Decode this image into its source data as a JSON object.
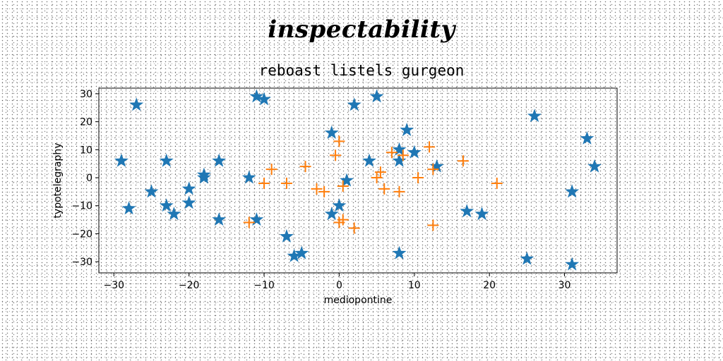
{
  "chart_data": {
    "type": "scatter",
    "suptitle": "inspectability",
    "title": "reboast listels gurgeon",
    "xlabel": "mediopontine",
    "ylabel": "typotelegraphy",
    "xlim": [
      -32,
      37
    ],
    "ylim": [
      -34,
      32
    ],
    "xticks": [
      -30,
      -20,
      -10,
      0,
      10,
      20,
      30
    ],
    "yticks": [
      -30,
      -20,
      -10,
      0,
      10,
      20,
      30
    ],
    "grid": false,
    "series": [
      {
        "marker": "star",
        "color": "#1f77b4",
        "points": [
          [
            -29,
            6
          ],
          [
            -28,
            -11
          ],
          [
            -27,
            26
          ],
          [
            -25,
            -5
          ],
          [
            -23,
            6
          ],
          [
            -23,
            -10
          ],
          [
            -22,
            -13
          ],
          [
            -20,
            -4
          ],
          [
            -20,
            -9
          ],
          [
            -18,
            1
          ],
          [
            -18,
            0
          ],
          [
            -16,
            6
          ],
          [
            -16,
            -15
          ],
          [
            -12,
            0
          ],
          [
            -11,
            29
          ],
          [
            -11,
            -15
          ],
          [
            -10,
            28
          ],
          [
            -7,
            -21
          ],
          [
            -6,
            -28
          ],
          [
            -5,
            -27
          ],
          [
            -1,
            16
          ],
          [
            -1,
            -13
          ],
          [
            0,
            -10
          ],
          [
            1,
            -1
          ],
          [
            2,
            26
          ],
          [
            4,
            6
          ],
          [
            5,
            29
          ],
          [
            8,
            10
          ],
          [
            8,
            6
          ],
          [
            8,
            -27
          ],
          [
            9,
            17
          ],
          [
            10,
            9
          ],
          [
            13,
            4
          ],
          [
            17,
            -12
          ],
          [
            19,
            -13
          ],
          [
            25,
            -29
          ],
          [
            26,
            22
          ],
          [
            31,
            -5
          ],
          [
            31,
            -31
          ],
          [
            33,
            14
          ],
          [
            34,
            4
          ]
        ]
      },
      {
        "marker": "plus",
        "color": "#ff7f0e",
        "points": [
          [
            -12,
            -16
          ],
          [
            -10,
            -2
          ],
          [
            -9,
            3
          ],
          [
            -7,
            -2
          ],
          [
            -4.5,
            4
          ],
          [
            -3,
            -4
          ],
          [
            -2,
            -5
          ],
          [
            -0.5,
            8
          ],
          [
            0,
            13
          ],
          [
            0,
            -16
          ],
          [
            0.5,
            -15
          ],
          [
            0.5,
            -3
          ],
          [
            2,
            -18
          ],
          [
            5,
            0
          ],
          [
            5.5,
            2
          ],
          [
            6,
            -4
          ],
          [
            7,
            9
          ],
          [
            8,
            -5
          ],
          [
            8.5,
            8
          ],
          [
            10.5,
            0
          ],
          [
            12,
            11
          ],
          [
            12.5,
            3
          ],
          [
            12.5,
            -17
          ],
          [
            16.5,
            6
          ],
          [
            21,
            -2
          ]
        ]
      }
    ]
  }
}
